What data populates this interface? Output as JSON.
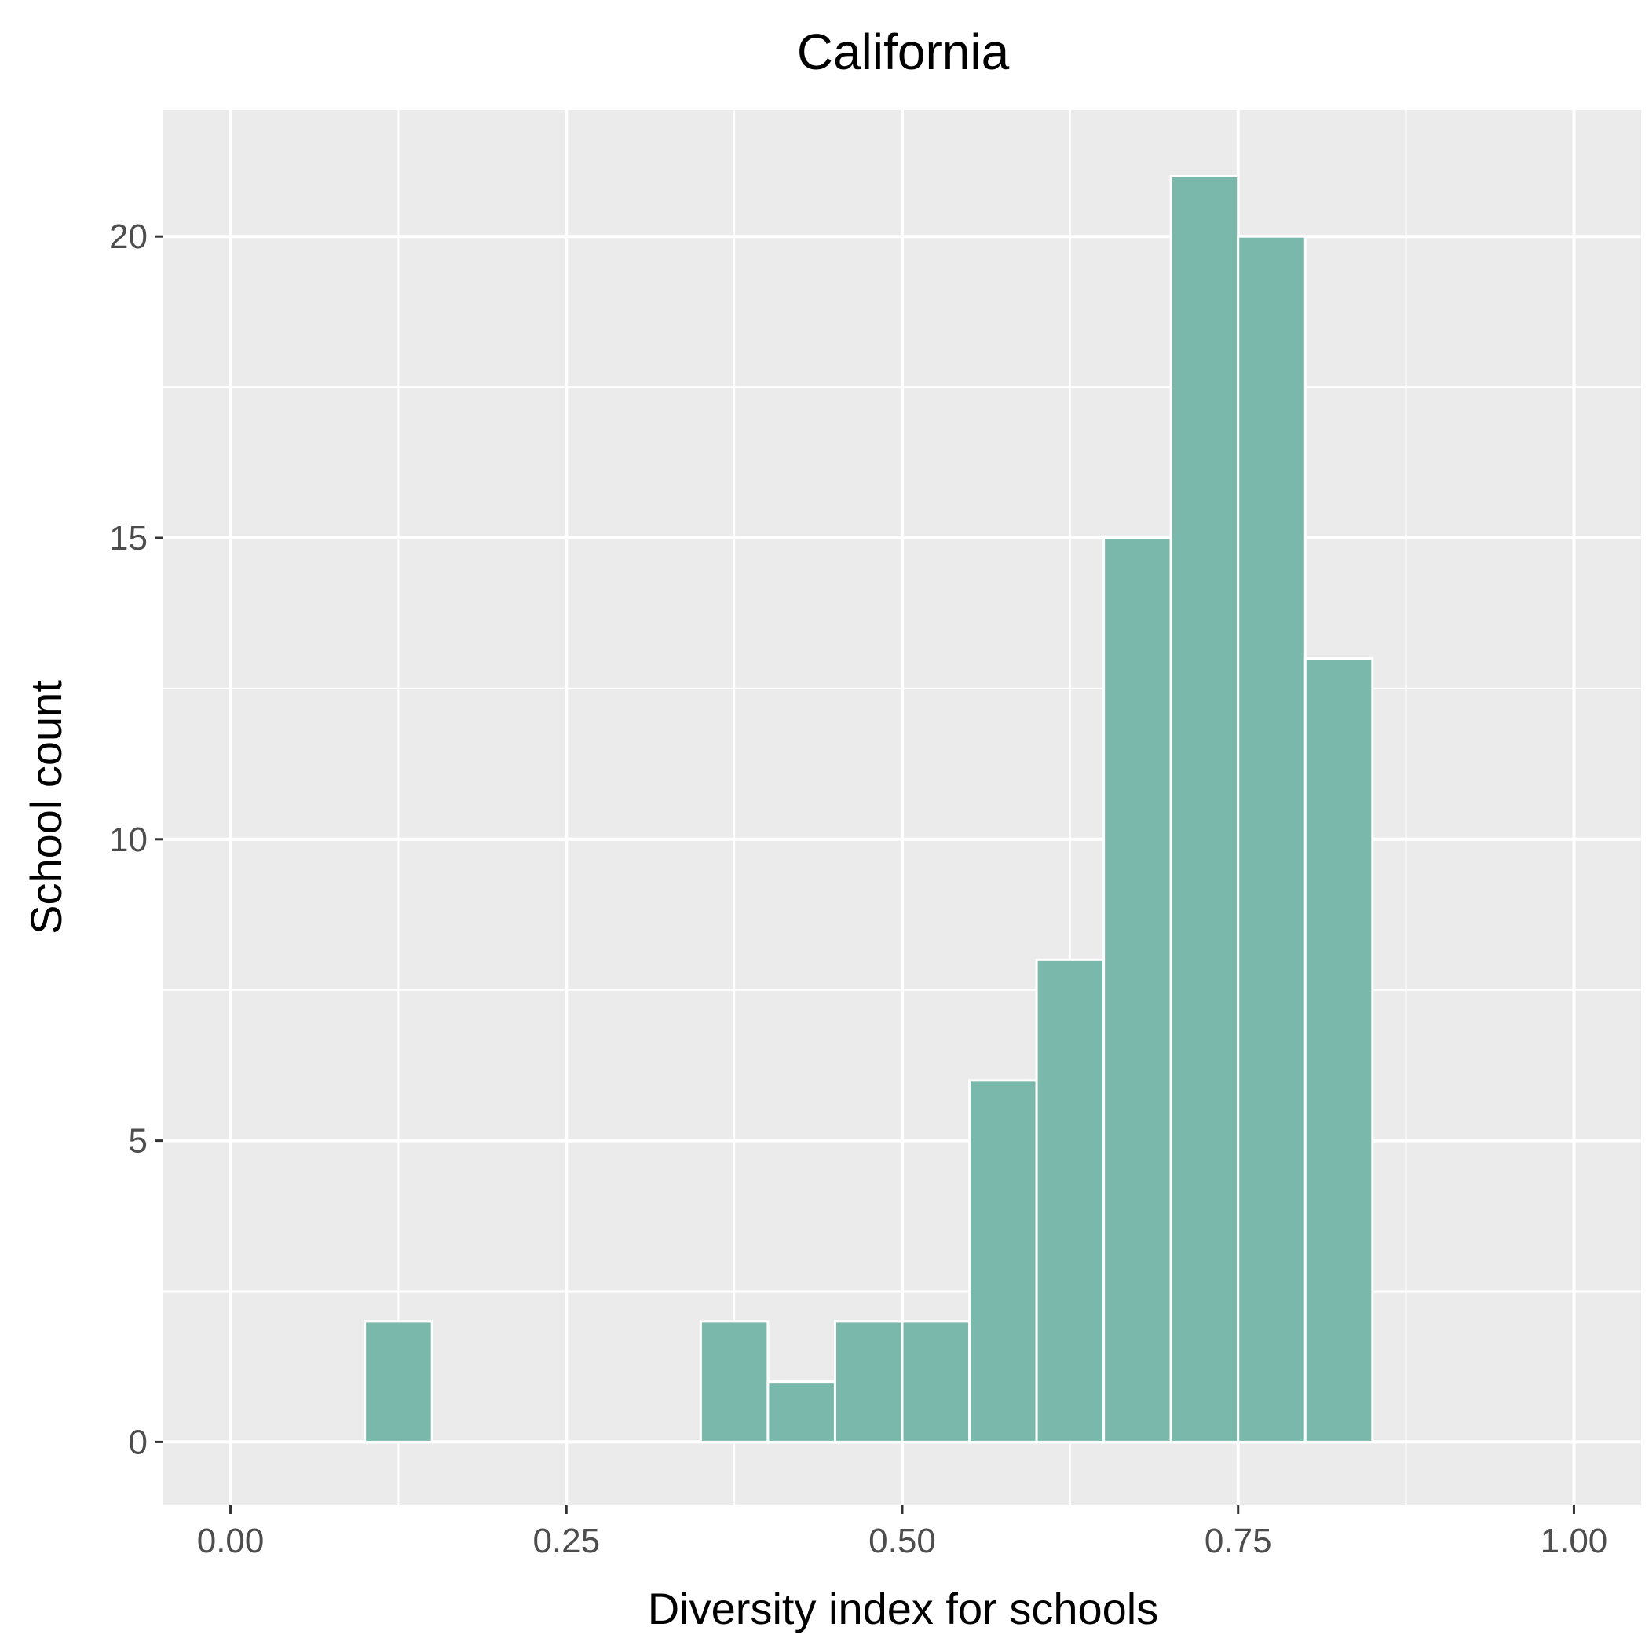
{
  "chart_data": {
    "type": "bar",
    "title": "California",
    "xlabel": "Diversity index for schools",
    "ylabel": "School count",
    "bin_width": 0.05,
    "bins": [
      {
        "x0": 0.0,
        "x1": 0.05,
        "count": 0
      },
      {
        "x0": 0.05,
        "x1": 0.1,
        "count": 0
      },
      {
        "x0": 0.1,
        "x1": 0.15,
        "count": 2
      },
      {
        "x0": 0.15,
        "x1": 0.2,
        "count": 0
      },
      {
        "x0": 0.2,
        "x1": 0.25,
        "count": 0
      },
      {
        "x0": 0.25,
        "x1": 0.3,
        "count": 0
      },
      {
        "x0": 0.3,
        "x1": 0.35,
        "count": 0
      },
      {
        "x0": 0.35,
        "x1": 0.4,
        "count": 2
      },
      {
        "x0": 0.4,
        "x1": 0.45,
        "count": 1
      },
      {
        "x0": 0.45,
        "x1": 0.5,
        "count": 2
      },
      {
        "x0": 0.5,
        "x1": 0.55,
        "count": 2
      },
      {
        "x0": 0.55,
        "x1": 0.6,
        "count": 6
      },
      {
        "x0": 0.6,
        "x1": 0.65,
        "count": 8
      },
      {
        "x0": 0.65,
        "x1": 0.7,
        "count": 15
      },
      {
        "x0": 0.7,
        "x1": 0.75,
        "count": 21
      },
      {
        "x0": 0.75,
        "x1": 0.8,
        "count": 20
      },
      {
        "x0": 0.8,
        "x1": 0.85,
        "count": 13
      },
      {
        "x0": 0.85,
        "x1": 0.9,
        "count": 0
      },
      {
        "x0": 0.9,
        "x1": 0.95,
        "count": 0
      },
      {
        "x0": 0.95,
        "x1": 1.0,
        "count": 0
      }
    ],
    "xlim": [
      -0.05,
      1.05
    ],
    "ylim": [
      -1.05,
      22.1
    ],
    "x_ticks": [
      {
        "value": 0.0,
        "label": "0.00"
      },
      {
        "value": 0.25,
        "label": "0.25"
      },
      {
        "value": 0.5,
        "label": "0.50"
      },
      {
        "value": 0.75,
        "label": "0.75"
      },
      {
        "value": 1.0,
        "label": "1.00"
      }
    ],
    "x_minor_ticks": [
      0.125,
      0.375,
      0.625,
      0.875
    ],
    "y_ticks": [
      {
        "value": 0,
        "label": "0"
      },
      {
        "value": 5,
        "label": "5"
      },
      {
        "value": 10,
        "label": "10"
      },
      {
        "value": 15,
        "label": "15"
      },
      {
        "value": 20,
        "label": "20"
      }
    ],
    "y_minor_ticks": [
      2.5,
      7.5,
      12.5,
      17.5
    ],
    "grid": true,
    "legend": "none",
    "colors": {
      "bar_fill": "#7ab8ab",
      "bar_stroke": "#ffffff",
      "panel_background": "#ebebeb",
      "grid_line": "#ffffff",
      "tick_mark": "#333333"
    }
  }
}
